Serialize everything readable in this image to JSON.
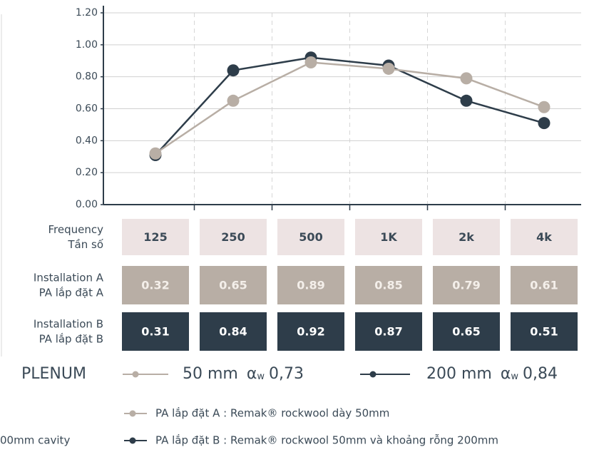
{
  "chart_data": {
    "type": "line",
    "categories": [
      "125",
      "250",
      "500",
      "1K",
      "2k",
      "4k"
    ],
    "series": [
      {
        "name": "PA lắp đặt A : Remak® rockwool dày 50mm",
        "color": "#b8aea5",
        "values": [
          0.32,
          0.65,
          0.89,
          0.85,
          0.79,
          0.61
        ]
      },
      {
        "name": "PA lắp đặt B : Remak® rockwool 50mm và khoảng rỗng 200mm",
        "color": "#2e3d4a",
        "values": [
          0.31,
          0.84,
          0.92,
          0.87,
          0.65,
          0.51
        ]
      }
    ],
    "ylim": [
      0,
      1.2
    ],
    "yticks": [
      {
        "value": 0,
        "label": "0.00"
      },
      {
        "value": 0.2,
        "label": "0.20"
      },
      {
        "value": 0.4,
        "label": "0.40"
      },
      {
        "value": 0.6,
        "label": "0.60"
      },
      {
        "value": 0.8,
        "label": "0.80"
      },
      {
        "value": 1,
        "label": "1.00"
      },
      {
        "value": 1.2,
        "label": "1.20"
      }
    ],
    "row_labels": [
      [
        "Frequency",
        "Tần số"
      ],
      [
        "Installation A",
        "PA lắp đặt A"
      ],
      [
        "Installation B",
        "PA lắp đặt B"
      ]
    ],
    "plenum": {
      "label": "PLENUM",
      "items": [
        {
          "size": "50 mm",
          "symbol": "α",
          "sub": "w",
          "value": "0,73"
        },
        {
          "size": "200 mm",
          "symbol": "α",
          "sub": "w",
          "value": "0,84"
        }
      ]
    },
    "note": "00mm cavity"
  }
}
